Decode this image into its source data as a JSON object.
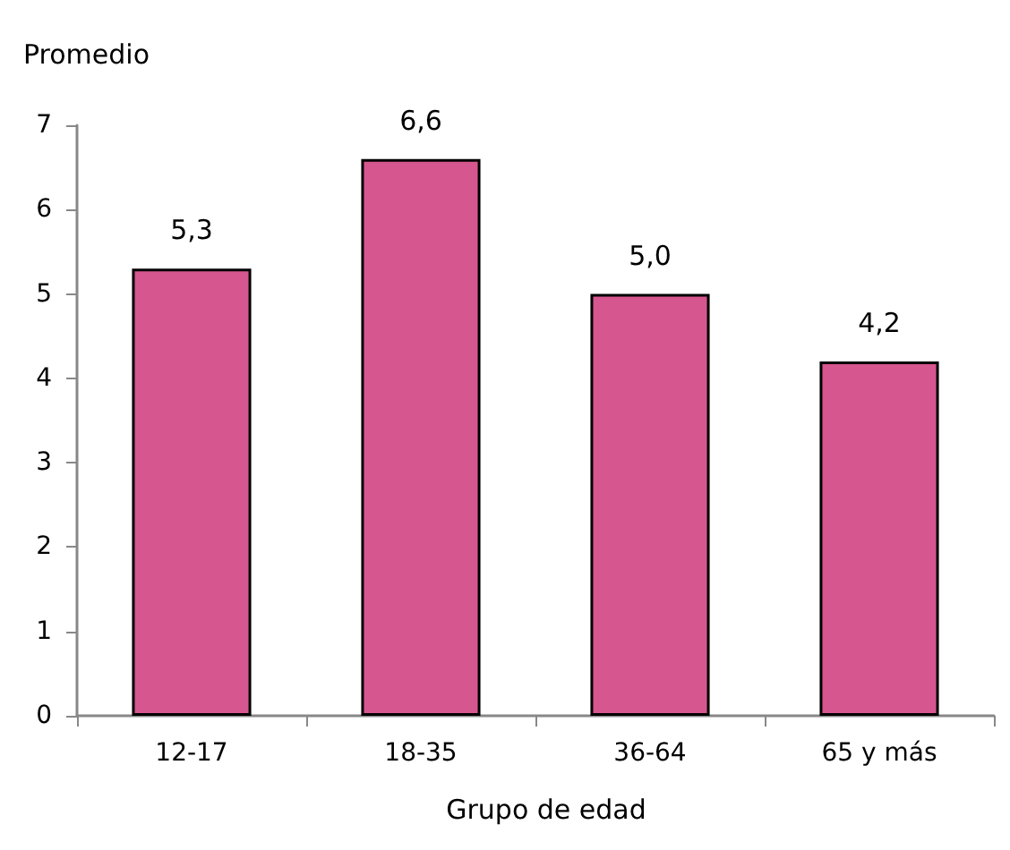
{
  "chart_data": {
    "type": "bar",
    "ylabel": "Promedio",
    "xlabel": "Grupo de edad",
    "categories": [
      "12-17",
      "18-35",
      "36-64",
      "65 y más"
    ],
    "values": [
      5.3,
      6.6,
      5.0,
      4.2
    ],
    "value_labels": [
      "5,3",
      "6,6",
      "5,0",
      "4,2"
    ],
    "color": "#d6568f",
    "ylim": [
      0,
      7
    ],
    "yticks": [
      0,
      1,
      2,
      3,
      4,
      5,
      6,
      7
    ],
    "grid": false
  }
}
